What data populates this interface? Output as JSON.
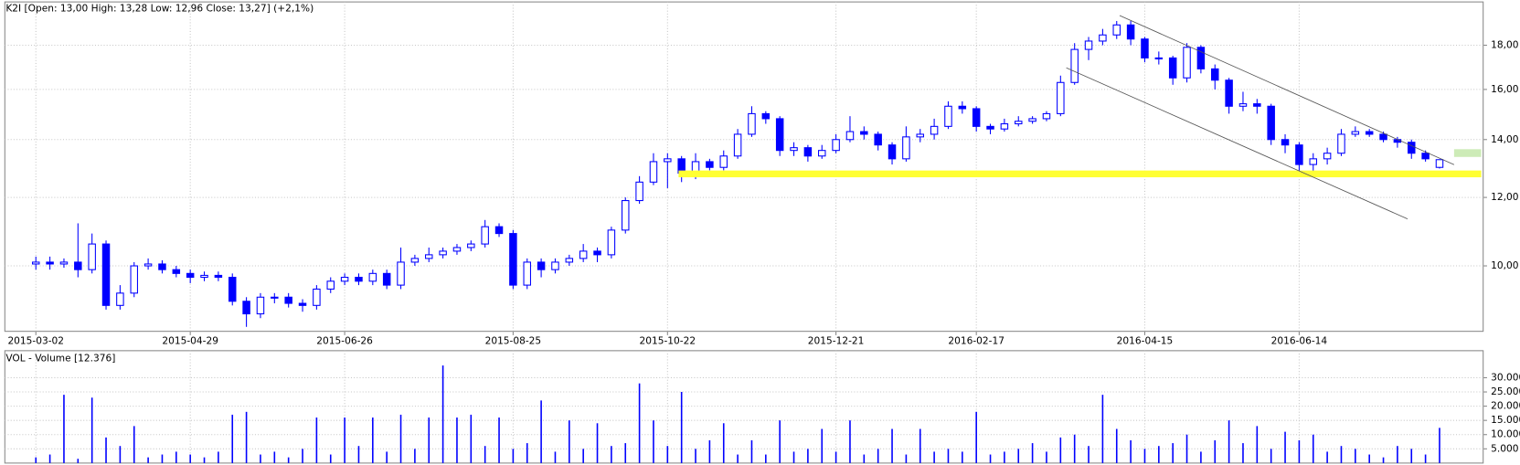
{
  "chart_data": [
    {
      "type": "candlestick",
      "title": "K2I [Open: 13,00  High: 13,28  Low: 12,96  Close: 13,27] (+2,1%)",
      "color": "#0000ff",
      "log": true,
      "grid": true,
      "categories": [
        "2015-03-02",
        null,
        null,
        null,
        null,
        null,
        null,
        null,
        null,
        null,
        null,
        "2015-04-29",
        null,
        null,
        null,
        null,
        null,
        null,
        null,
        null,
        null,
        null,
        "2015-06-26",
        null,
        null,
        null,
        null,
        null,
        null,
        null,
        null,
        null,
        null,
        null,
        "2015-08-25",
        null,
        null,
        null,
        null,
        null,
        null,
        null,
        null,
        null,
        null,
        "2015-10-22",
        null,
        null,
        null,
        null,
        null,
        null,
        null,
        null,
        null,
        null,
        null,
        "2015-12-21",
        null,
        null,
        null,
        null,
        null,
        null,
        null,
        null,
        null,
        "2016-02-17",
        null,
        null,
        null,
        null,
        null,
        null,
        null,
        null,
        null,
        null,
        null,
        "2016-04-15",
        null,
        null,
        null,
        null,
        null,
        null,
        null,
        null,
        null,
        null,
        "2016-06-14",
        null,
        null,
        null,
        null,
        null,
        null,
        null,
        null,
        null,
        null
      ],
      "open": [
        10.05,
        10.1,
        10.05,
        10.1,
        9.9,
        10.6,
        9.0,
        9.3,
        10.0,
        10.05,
        9.9,
        9.8,
        9.7,
        9.75,
        9.7,
        9.1,
        8.8,
        9.2,
        9.2,
        9.05,
        9.0,
        9.4,
        9.6,
        9.7,
        9.6,
        9.8,
        9.5,
        10.1,
        10.2,
        10.3,
        10.4,
        10.5,
        10.6,
        11.1,
        10.9,
        9.5,
        10.1,
        9.9,
        10.1,
        10.2,
        10.4,
        10.3,
        11.0,
        11.9,
        12.5,
        13.2,
        13.3,
        12.8,
        13.2,
        13.0,
        13.4,
        14.2,
        15.0,
        14.8,
        13.6,
        13.7,
        13.4,
        13.6,
        14.0,
        14.3,
        14.2,
        13.8,
        13.3,
        14.1,
        14.2,
        14.5,
        15.3,
        15.2,
        14.5,
        14.4,
        14.6,
        14.7,
        14.8,
        15.0,
        16.3,
        17.8,
        18.2,
        18.5,
        19.0,
        18.3,
        17.4,
        17.4,
        16.5,
        17.9,
        16.9,
        16.4,
        15.3,
        15.4,
        15.3,
        14.0,
        13.8,
        13.1,
        13.3,
        13.5,
        14.2,
        14.3,
        14.2,
        14.0,
        13.9,
        13.5,
        13.0
      ],
      "high": [
        10.25,
        10.25,
        10.2,
        11.2,
        10.9,
        10.7,
        9.5,
        10.1,
        10.2,
        10.15,
        10.0,
        9.9,
        9.85,
        9.85,
        9.8,
        9.2,
        9.3,
        9.3,
        9.3,
        9.15,
        9.5,
        9.7,
        9.8,
        9.8,
        9.9,
        9.9,
        10.5,
        10.3,
        10.5,
        10.5,
        10.6,
        10.7,
        11.3,
        11.2,
        11.0,
        10.2,
        10.2,
        10.2,
        10.3,
        10.6,
        10.5,
        11.1,
        12.0,
        12.7,
        13.5,
        13.5,
        13.4,
        13.5,
        13.3,
        13.6,
        14.4,
        15.3,
        15.1,
        14.9,
        13.9,
        13.8,
        13.8,
        14.2,
        14.9,
        14.5,
        14.3,
        13.9,
        14.5,
        14.4,
        14.8,
        15.5,
        15.5,
        15.3,
        14.6,
        14.8,
        14.9,
        14.9,
        15.1,
        16.6,
        18.1,
        18.4,
        18.8,
        19.2,
        19.2,
        18.4,
        17.7,
        17.5,
        18.1,
        18.0,
        17.1,
        16.5,
        15.9,
        15.6,
        15.4,
        14.2,
        13.9,
        13.5,
        13.7,
        14.4,
        14.5,
        14.4,
        14.3,
        14.1,
        14.0,
        13.6,
        13.28
      ],
      "low": [
        9.9,
        9.9,
        9.95,
        9.7,
        9.8,
        8.9,
        8.9,
        9.2,
        9.9,
        9.8,
        9.7,
        9.55,
        9.6,
        9.6,
        9.0,
        8.5,
        8.7,
        9.05,
        8.95,
        8.85,
        8.9,
        9.3,
        9.5,
        9.5,
        9.5,
        9.4,
        9.4,
        10.0,
        10.1,
        10.2,
        10.3,
        10.4,
        10.5,
        10.8,
        9.4,
        9.4,
        9.7,
        9.8,
        10.0,
        10.1,
        10.1,
        10.2,
        10.9,
        11.8,
        12.4,
        12.3,
        12.5,
        12.6,
        12.9,
        12.9,
        13.3,
        14.1,
        14.6,
        13.4,
        13.4,
        13.2,
        13.3,
        13.5,
        13.9,
        14.0,
        13.6,
        13.1,
        13.2,
        13.9,
        14.0,
        14.4,
        15.0,
        14.3,
        14.2,
        14.3,
        14.5,
        14.6,
        14.7,
        14.9,
        16.2,
        17.3,
        18.0,
        18.3,
        18.0,
        17.2,
        17.1,
        16.2,
        16.3,
        16.7,
        16.0,
        15.0,
        15.1,
        15.0,
        13.8,
        13.5,
        12.8,
        12.8,
        13.1,
        13.4,
        14.1,
        14.1,
        13.9,
        13.7,
        13.3,
        13.2,
        12.96
      ],
      "close": [
        10.1,
        10.05,
        10.1,
        9.9,
        10.6,
        9.0,
        9.3,
        10.0,
        10.05,
        9.9,
        9.8,
        9.7,
        9.75,
        9.7,
        9.1,
        8.8,
        9.2,
        9.2,
        9.05,
        9.0,
        9.4,
        9.6,
        9.7,
        9.6,
        9.8,
        9.5,
        10.1,
        10.2,
        10.3,
        10.4,
        10.5,
        10.6,
        11.1,
        10.9,
        9.5,
        10.1,
        9.9,
        10.1,
        10.2,
        10.4,
        10.3,
        11.0,
        11.9,
        12.5,
        13.2,
        13.3,
        12.8,
        13.2,
        13.0,
        13.4,
        14.2,
        15.0,
        14.8,
        13.6,
        13.7,
        13.4,
        13.6,
        14.0,
        14.3,
        14.2,
        13.8,
        13.3,
        14.1,
        14.2,
        14.5,
        15.3,
        15.2,
        14.5,
        14.4,
        14.6,
        14.7,
        14.8,
        15.0,
        16.3,
        17.8,
        18.2,
        18.5,
        19.0,
        18.3,
        17.4,
        17.4,
        16.5,
        17.9,
        16.9,
        16.4,
        15.3,
        15.4,
        15.3,
        14.0,
        13.8,
        13.1,
        13.3,
        13.5,
        14.2,
        14.3,
        14.2,
        14.0,
        13.9,
        13.5,
        13.3,
        13.27
      ],
      "ylim": [
        8.4,
        20.2
      ],
      "yticks": [
        {
          "value": 10,
          "label": "10,00"
        },
        {
          "value": 12,
          "label": "12,00"
        },
        {
          "value": 14,
          "label": "14,00"
        },
        {
          "value": 16,
          "label": "16,00"
        },
        {
          "value": 18,
          "label": "18,00"
        }
      ]
    },
    {
      "type": "bar",
      "title": "VOL - Volume [12.376]",
      "color": "#0000ff",
      "grid": true,
      "values": [
        2000,
        3000,
        24000,
        1500,
        23000,
        9000,
        6000,
        13000,
        2000,
        3000,
        4000,
        3000,
        2000,
        4000,
        17000,
        18000,
        3000,
        4000,
        2000,
        5000,
        16000,
        3000,
        16000,
        6000,
        16000,
        4000,
        17000,
        5000,
        16000,
        34300,
        16000,
        17000,
        6000,
        16000,
        5000,
        7000,
        22000,
        4000,
        15000,
        5000,
        14000,
        6000,
        7000,
        28000,
        15000,
        6000,
        25000,
        5000,
        8000,
        14000,
        3000,
        8000,
        3000,
        15000,
        4000,
        5000,
        12000,
        4000,
        15000,
        3000,
        5000,
        12000,
        3000,
        12000,
        4000,
        5000,
        4000,
        18000,
        3000,
        4000,
        5000,
        7000,
        4000,
        9000,
        10000,
        6000,
        24000,
        12000,
        8000,
        5000,
        6000,
        7000,
        10000,
        4000,
        8000,
        15000,
        7000,
        13000,
        5000,
        11000,
        8000,
        10000,
        4000,
        6000,
        5000,
        3000,
        2000,
        6000,
        5000,
        3000,
        12376
      ],
      "ylim": [
        0,
        39500
      ],
      "yticks": [
        {
          "value": 5000,
          "label": "5.000"
        },
        {
          "value": 10000,
          "label": "10.000"
        },
        {
          "value": 15000,
          "label": "15.000"
        },
        {
          "value": 20000,
          "label": "20.000"
        },
        {
          "value": 25000,
          "label": "25.000"
        },
        {
          "value": 30000,
          "label": "30.000"
        }
      ]
    }
  ]
}
